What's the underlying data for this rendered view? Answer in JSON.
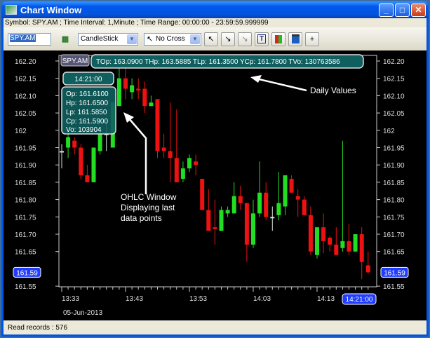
{
  "window": {
    "title": "Chart Window",
    "minimize": "_",
    "maximize": "□",
    "close": "✕"
  },
  "info_line": "Symbol: SPY.AM ; Time Interval: 1,Minute ; Time Range: 00:00:00 - 23:59:59.999999",
  "toolbar": {
    "symbol_value": "SPY.AM",
    "chart_type": "CandleStick",
    "cross_mode": "No Cross",
    "plus_label": "+",
    "text_tool_label": "T",
    "icons": [
      "chart-settings-icon",
      "zoom-in-icon",
      "zoom-out-icon",
      "zoom-reset-icon",
      "text-icon",
      "color-bars-icon",
      "calendar-icon"
    ]
  },
  "chart": {
    "symbol_badge": "SPY.AM",
    "daily_values": "TOp: 163.0900 THp: 163.5885 TLp: 161.3500 YCp: 161.7800 TVo: 130763586",
    "ohlc_time": "14:21:00",
    "ohlc": {
      "op": "Op: 161.6100",
      "hp": "Hp: 161.6500",
      "lp": "Lp: 161.5850",
      "cp": "Cp: 161.5900",
      "vo": "Vo: 103904"
    },
    "annotation_daily": "Daily Values",
    "annotation_ohlc": [
      "OHLC Window",
      "Displaying last",
      "data points"
    ],
    "price_labels": [
      "162.20",
      "162.15",
      "162.10",
      "162.05",
      "162",
      "161.95",
      "161.90",
      "161.85",
      "161.80",
      "161.75",
      "161.70",
      "161.65",
      "161.55"
    ],
    "current_price": "161.59",
    "time_labels": [
      "13:33",
      "13:43",
      "13:53",
      "14:03",
      "14:13"
    ],
    "current_time": "14:21:00",
    "date_label": "05-Jun-2013",
    "colors": {
      "up": "#22dd22",
      "down": "#ee1111",
      "doji": "#dddddd",
      "panel": "#0f5f5f",
      "highlight": "#1f3cff"
    }
  },
  "chart_data": {
    "type": "candlestick",
    "start_time": "13:33",
    "interval": "1 Minute",
    "ylim": [
      161.55,
      162.2
    ],
    "candles": [
      [
        161.94,
        161.96,
        161.89,
        161.94
      ],
      [
        161.95,
        162.0,
        161.92,
        161.98
      ],
      [
        161.97,
        161.98,
        161.93,
        161.95
      ],
      [
        161.95,
        161.96,
        161.86,
        161.87
      ],
      [
        161.87,
        161.9,
        161.85,
        161.85
      ],
      [
        161.85,
        161.95,
        161.85,
        161.95
      ],
      [
        161.94,
        162.0,
        161.93,
        161.99
      ],
      [
        161.99,
        162.02,
        161.94,
        161.99
      ],
      [
        161.95,
        162.08,
        161.95,
        162.08
      ],
      [
        162.07,
        162.18,
        162.07,
        162.15
      ],
      [
        162.15,
        162.18,
        162.09,
        162.12
      ],
      [
        162.11,
        162.15,
        162.09,
        162.13
      ],
      [
        162.12,
        162.15,
        162.09,
        162.115
      ],
      [
        162.12,
        162.14,
        162.05,
        162.07
      ],
      [
        162.07,
        162.1,
        162.07,
        162.08
      ],
      [
        162.09,
        162.09,
        161.92,
        161.94
      ],
      [
        161.95,
        161.99,
        161.92,
        161.94
      ],
      [
        161.94,
        162.08,
        161.85,
        161.92
      ],
      [
        161.92,
        162.06,
        161.85,
        161.85
      ],
      [
        161.86,
        161.91,
        161.85,
        161.89
      ],
      [
        161.89,
        161.93,
        161.88,
        161.92
      ],
      [
        161.91,
        161.93,
        161.87,
        161.9
      ],
      [
        161.86,
        161.86,
        161.77,
        161.77
      ],
      [
        161.77,
        161.83,
        161.71,
        161.71
      ],
      [
        161.72,
        161.8,
        161.67,
        161.715
      ],
      [
        161.71,
        161.78,
        161.71,
        161.77
      ],
      [
        161.76,
        161.78,
        161.75,
        161.77
      ],
      [
        161.76,
        161.85,
        161.76,
        161.81
      ],
      [
        161.81,
        161.84,
        161.77,
        161.79
      ],
      [
        161.79,
        161.79,
        161.62,
        161.67
      ],
      [
        161.67,
        161.8,
        161.66,
        161.76
      ],
      [
        161.76,
        161.91,
        161.75,
        161.82
      ],
      [
        161.82,
        161.85,
        161.74,
        161.75
      ],
      [
        161.75,
        161.78,
        161.71,
        161.75
      ],
      [
        161.755,
        161.88,
        161.74,
        161.79
      ],
      [
        161.78,
        161.87,
        161.755,
        161.87
      ],
      [
        161.86,
        161.87,
        161.82,
        161.82
      ],
      [
        161.81,
        161.83,
        161.75,
        161.8
      ],
      [
        161.8,
        161.81,
        161.755,
        161.755
      ],
      [
        161.755,
        161.78,
        161.64,
        161.65
      ],
      [
        161.64,
        161.72,
        161.63,
        161.72
      ],
      [
        161.72,
        161.76,
        161.645,
        161.68
      ],
      [
        161.69,
        161.695,
        161.65,
        161.67
      ],
      [
        161.67,
        161.72,
        161.64,
        161.64
      ],
      [
        161.66,
        161.97,
        161.65,
        161.68
      ],
      [
        161.68,
        161.73,
        161.64,
        161.65
      ],
      [
        161.65,
        161.7,
        161.65,
        161.7
      ],
      [
        161.7,
        161.72,
        161.57,
        161.62
      ],
      [
        161.61,
        161.65,
        161.585,
        161.59
      ]
    ]
  },
  "status": "Read records : 576"
}
